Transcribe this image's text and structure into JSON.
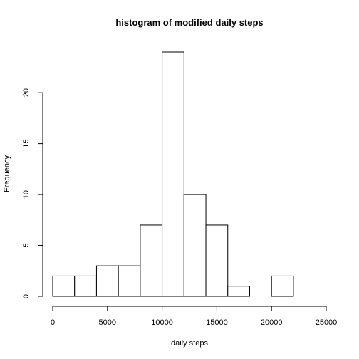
{
  "chart_data": {
    "type": "bar",
    "title": "histogram of modified daily steps",
    "xlabel": "daily steps",
    "ylabel": "Frequency",
    "bins": [
      {
        "from": 0,
        "to": 2000,
        "count": 2
      },
      {
        "from": 2000,
        "to": 4000,
        "count": 2
      },
      {
        "from": 4000,
        "to": 6000,
        "count": 3
      },
      {
        "from": 6000,
        "to": 8000,
        "count": 3
      },
      {
        "from": 8000,
        "to": 10000,
        "count": 7
      },
      {
        "from": 10000,
        "to": 12000,
        "count": 24
      },
      {
        "from": 12000,
        "to": 14000,
        "count": 10
      },
      {
        "from": 14000,
        "to": 16000,
        "count": 7
      },
      {
        "from": 16000,
        "to": 18000,
        "count": 1
      },
      {
        "from": 18000,
        "to": 20000,
        "count": 0
      },
      {
        "from": 20000,
        "to": 22000,
        "count": 2
      }
    ],
    "xlim": [
      0,
      25000
    ],
    "ylim": [
      0,
      24
    ],
    "x_ticks": [
      "0",
      "5000",
      "10000",
      "15000",
      "20000",
      "25000"
    ],
    "y_ticks": [
      "0",
      "5",
      "10",
      "15",
      "20"
    ],
    "grid": false,
    "colors": {
      "bar_fill": "#ffffff",
      "bar_stroke": "#000000"
    }
  }
}
